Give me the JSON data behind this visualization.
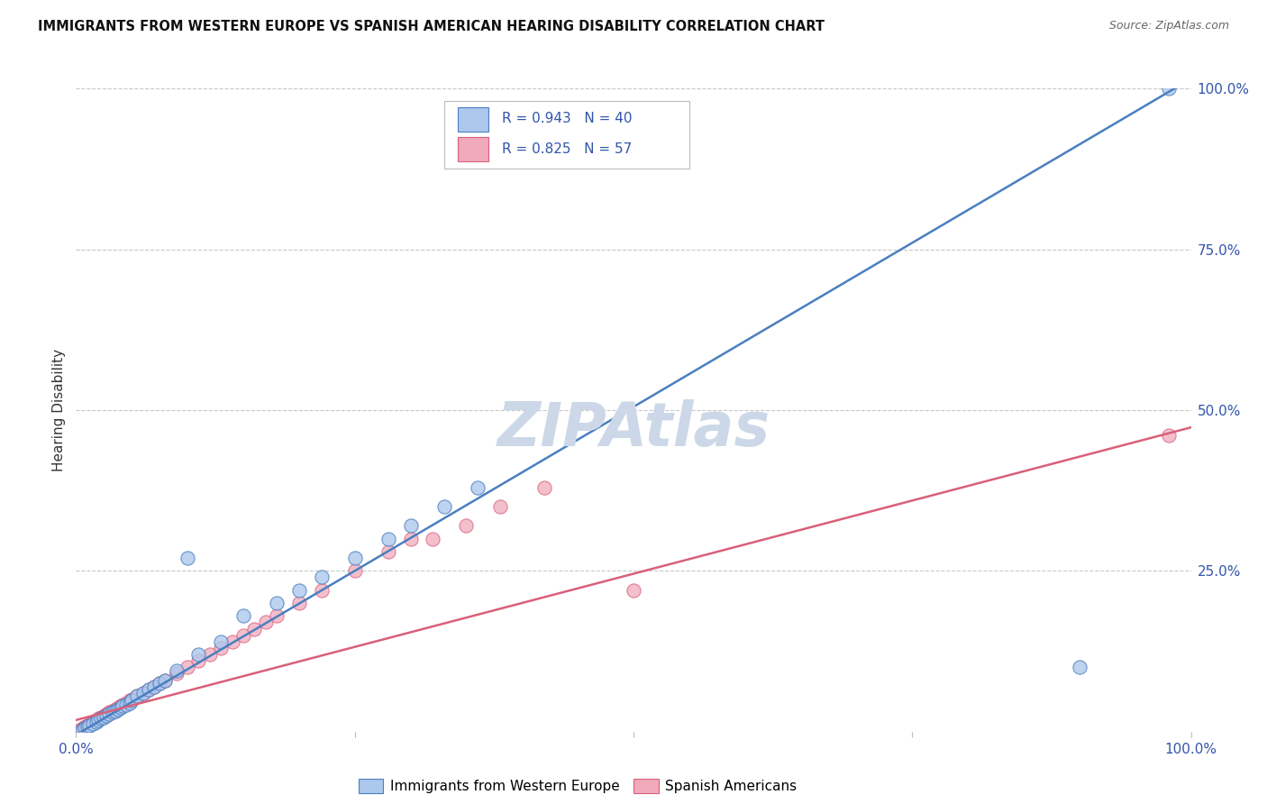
{
  "title": "IMMIGRANTS FROM WESTERN EUROPE VS SPANISH AMERICAN HEARING DISABILITY CORRELATION CHART",
  "source": "Source: ZipAtlas.com",
  "ylabel": "Hearing Disability",
  "watermark": "ZIPAtlas",
  "blue_R": 0.943,
  "blue_N": 40,
  "pink_R": 0.825,
  "pink_N": 57,
  "blue_color": "#adc8ed",
  "pink_color": "#f0aabb",
  "blue_line_color": "#4a7fc0",
  "pink_line_color": "#d9607a",
  "legend_blue_label": "Immigrants from Western Europe",
  "legend_pink_label": "Spanish Americans",
  "background_color": "#ffffff",
  "grid_color": "#c8c8c8",
  "title_color": "#111111",
  "tick_label_color": "#3355aa",
  "watermark_color": "#ccd8e8",
  "blue_line_slope": 1.02,
  "blue_line_intercept": -0.005,
  "pink_line_slope": 0.455,
  "pink_line_intercept": 0.018,
  "blue_x": [
    0.005,
    0.008,
    0.01,
    0.012,
    0.015,
    0.018,
    0.02,
    0.022,
    0.025,
    0.027,
    0.03,
    0.033,
    0.035,
    0.038,
    0.04,
    0.042,
    0.045,
    0.048,
    0.05,
    0.055,
    0.06,
    0.065,
    0.07,
    0.075,
    0.08,
    0.09,
    0.1,
    0.11,
    0.13,
    0.15,
    0.18,
    0.2,
    0.22,
    0.25,
    0.28,
    0.3,
    0.33,
    0.36,
    0.9,
    0.98
  ],
  "blue_y": [
    0.003,
    0.005,
    0.008,
    0.01,
    0.012,
    0.015,
    0.018,
    0.02,
    0.022,
    0.025,
    0.028,
    0.03,
    0.032,
    0.035,
    0.038,
    0.04,
    0.042,
    0.045,
    0.048,
    0.055,
    0.06,
    0.065,
    0.07,
    0.075,
    0.08,
    0.095,
    0.27,
    0.12,
    0.14,
    0.18,
    0.2,
    0.22,
    0.24,
    0.27,
    0.3,
    0.32,
    0.35,
    0.38,
    0.1,
    1.0
  ],
  "pink_x": [
    0.003,
    0.005,
    0.006,
    0.007,
    0.008,
    0.009,
    0.01,
    0.011,
    0.012,
    0.013,
    0.014,
    0.015,
    0.016,
    0.017,
    0.018,
    0.019,
    0.02,
    0.022,
    0.024,
    0.026,
    0.028,
    0.03,
    0.032,
    0.035,
    0.038,
    0.04,
    0.042,
    0.045,
    0.048,
    0.05,
    0.055,
    0.06,
    0.065,
    0.07,
    0.075,
    0.08,
    0.09,
    0.1,
    0.11,
    0.12,
    0.13,
    0.14,
    0.15,
    0.16,
    0.17,
    0.18,
    0.2,
    0.22,
    0.25,
    0.28,
    0.3,
    0.32,
    0.35,
    0.38,
    0.42,
    0.5,
    0.98
  ],
  "pink_y": [
    0.002,
    0.004,
    0.005,
    0.006,
    0.007,
    0.008,
    0.009,
    0.01,
    0.011,
    0.012,
    0.013,
    0.014,
    0.015,
    0.016,
    0.017,
    0.018,
    0.02,
    0.022,
    0.024,
    0.026,
    0.028,
    0.03,
    0.032,
    0.035,
    0.038,
    0.04,
    0.042,
    0.045,
    0.048,
    0.05,
    0.055,
    0.06,
    0.065,
    0.07,
    0.075,
    0.08,
    0.09,
    0.1,
    0.11,
    0.12,
    0.13,
    0.14,
    0.15,
    0.16,
    0.17,
    0.18,
    0.2,
    0.22,
    0.25,
    0.28,
    0.3,
    0.3,
    0.32,
    0.35,
    0.38,
    0.22,
    0.46
  ]
}
